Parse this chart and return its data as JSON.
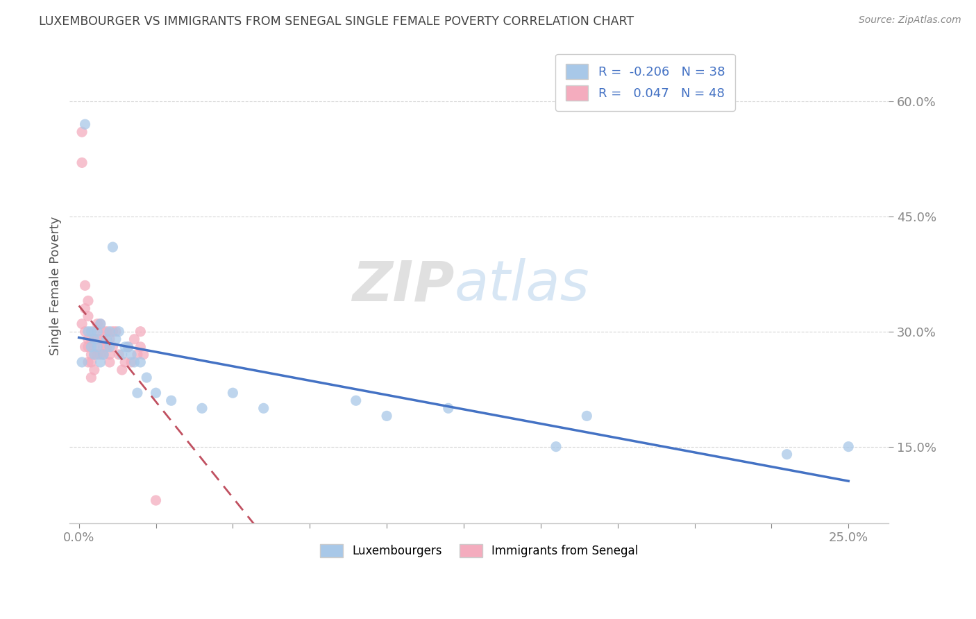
{
  "title": "LUXEMBOURGER VS IMMIGRANTS FROM SENEGAL SINGLE FEMALE POVERTY CORRELATION CHART",
  "source": "Source: ZipAtlas.com",
  "ylabel_label": "Single Female Poverty",
  "xlim": [
    -0.003,
    0.263
  ],
  "ylim": [
    0.05,
    0.67
  ],
  "lux_R": -0.206,
  "lux_N": 38,
  "sen_R": 0.047,
  "sen_N": 48,
  "lux_color": "#A8C8E8",
  "sen_color": "#F4ACBE",
  "lux_line_color": "#4472C4",
  "sen_line_color": "#C05060",
  "background_color": "#FFFFFF",
  "grid_color": "#CCCCCC",
  "watermark_zip": "ZIP",
  "watermark_atlas": "atlas",
  "lux_scatter_x": [
    0.001,
    0.002,
    0.003,
    0.004,
    0.004,
    0.005,
    0.005,
    0.006,
    0.006,
    0.007,
    0.007,
    0.008,
    0.009,
    0.01,
    0.01,
    0.011,
    0.012,
    0.013,
    0.014,
    0.015,
    0.016,
    0.017,
    0.018,
    0.019,
    0.02,
    0.022,
    0.025,
    0.03,
    0.04,
    0.05,
    0.06,
    0.09,
    0.1,
    0.12,
    0.155,
    0.165,
    0.23,
    0.25
  ],
  "lux_scatter_y": [
    0.26,
    0.57,
    0.3,
    0.28,
    0.3,
    0.27,
    0.29,
    0.3,
    0.28,
    0.31,
    0.26,
    0.27,
    0.29,
    0.28,
    0.3,
    0.41,
    0.29,
    0.3,
    0.27,
    0.28,
    0.28,
    0.27,
    0.26,
    0.22,
    0.26,
    0.24,
    0.22,
    0.21,
    0.2,
    0.22,
    0.2,
    0.21,
    0.19,
    0.2,
    0.15,
    0.19,
    0.14,
    0.15
  ],
  "sen_scatter_x": [
    0.001,
    0.001,
    0.001,
    0.002,
    0.002,
    0.002,
    0.002,
    0.003,
    0.003,
    0.003,
    0.003,
    0.003,
    0.004,
    0.004,
    0.004,
    0.004,
    0.005,
    0.005,
    0.005,
    0.005,
    0.006,
    0.006,
    0.006,
    0.007,
    0.007,
    0.007,
    0.008,
    0.008,
    0.008,
    0.009,
    0.009,
    0.01,
    0.01,
    0.01,
    0.011,
    0.011,
    0.012,
    0.013,
    0.014,
    0.015,
    0.016,
    0.017,
    0.018,
    0.019,
    0.02,
    0.02,
    0.021,
    0.025
  ],
  "sen_scatter_y": [
    0.56,
    0.52,
    0.31,
    0.33,
    0.36,
    0.3,
    0.28,
    0.34,
    0.32,
    0.29,
    0.28,
    0.26,
    0.29,
    0.27,
    0.26,
    0.24,
    0.3,
    0.28,
    0.27,
    0.25,
    0.31,
    0.29,
    0.27,
    0.31,
    0.29,
    0.27,
    0.3,
    0.28,
    0.27,
    0.3,
    0.28,
    0.29,
    0.27,
    0.26,
    0.3,
    0.28,
    0.3,
    0.27,
    0.25,
    0.26,
    0.28,
    0.26,
    0.29,
    0.27,
    0.3,
    0.28,
    0.27,
    0.08
  ]
}
